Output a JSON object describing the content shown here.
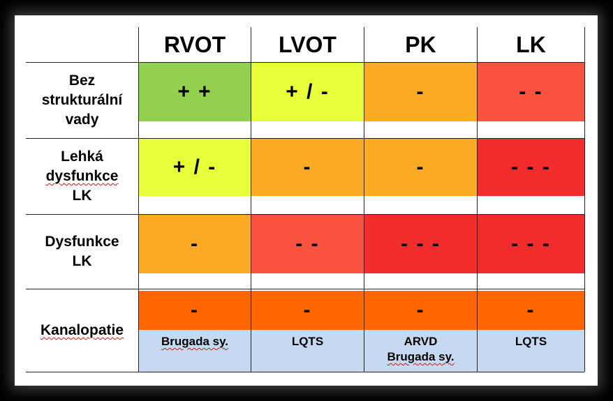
{
  "columns": [
    "RVOT",
    "LVOT",
    "PK",
    "LK"
  ],
  "rows": [
    {
      "label_lines": [
        "Bez",
        "strukturální",
        "vady"
      ],
      "cells": [
        "+ +",
        "+ / -",
        "-",
        "- -"
      ]
    },
    {
      "label_lines": [
        "Lehká",
        "dysfunkce",
        "LK"
      ],
      "cells": [
        "+ / -",
        "-",
        "-",
        "- - -"
      ]
    },
    {
      "label_lines": [
        "Dysfunkce",
        "LK"
      ],
      "cells": [
        "-",
        "- -",
        "- - -",
        "- - -"
      ]
    },
    {
      "label_lines": [
        "Kanalopatie"
      ],
      "cells": [
        "-",
        "-",
        "-",
        "-"
      ],
      "sub": [
        [
          "Brugada sy."
        ],
        [
          "LQTS"
        ],
        [
          "ARVD",
          "Brugada sy."
        ],
        [
          "LQTS"
        ]
      ]
    }
  ],
  "colors": {
    "green": "#92d050",
    "yellow_green": "#e6ff38",
    "orange": "#fbaa26",
    "red_light": "#f9523f",
    "red": "#f12c2c",
    "deep_orange": "#ff6600",
    "light_blue": "#c5d9f1"
  }
}
